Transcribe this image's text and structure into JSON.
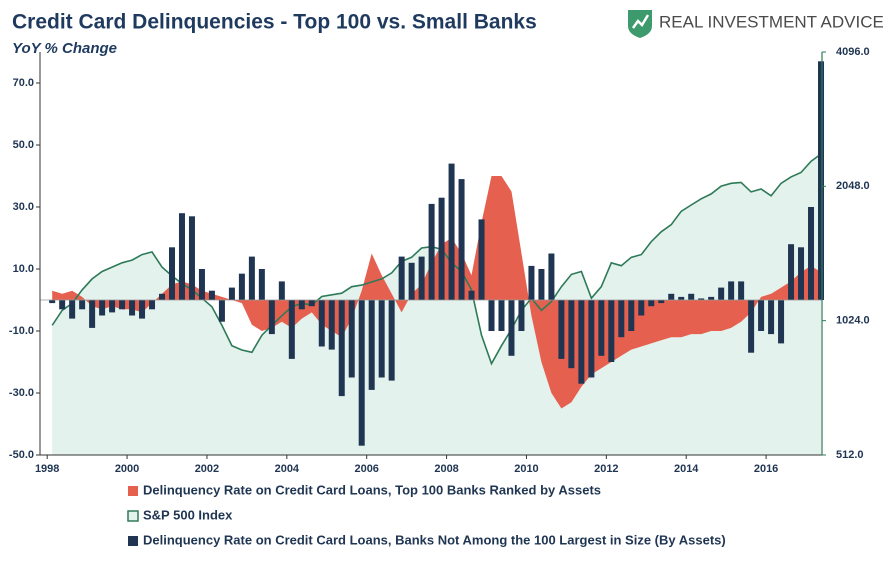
{
  "brand": "REAL INVESTMENT ADVICE",
  "chart_data": {
    "type": "combo",
    "title": "Credit Card Delinquencies - Top 100 vs. Small Banks",
    "subtitle": "YoY % Change",
    "x": [
      1998.125,
      1998.375,
      1998.625,
      1998.875,
      1999.125,
      1999.375,
      1999.625,
      1999.875,
      2000.125,
      2000.375,
      2000.625,
      2000.875,
      2001.125,
      2001.375,
      2001.625,
      2001.875,
      2002.125,
      2002.375,
      2002.625,
      2002.875,
      2003.125,
      2003.375,
      2003.625,
      2003.875,
      2004.125,
      2004.375,
      2004.625,
      2004.875,
      2005.125,
      2005.375,
      2005.625,
      2005.875,
      2006.125,
      2006.375,
      2006.625,
      2006.875,
      2007.125,
      2007.375,
      2007.625,
      2007.875,
      2008.125,
      2008.375,
      2008.625,
      2008.875,
      2009.125,
      2009.375,
      2009.625,
      2009.875,
      2010.125,
      2010.375,
      2010.625,
      2010.875,
      2011.125,
      2011.375,
      2011.625,
      2011.875,
      2012.125,
      2012.375,
      2012.625,
      2012.875,
      2013.125,
      2013.375,
      2013.625,
      2013.875,
      2014.125,
      2014.375,
      2014.625,
      2014.875,
      2015.125,
      2015.375,
      2015.625,
      2015.875,
      2016.125,
      2016.375,
      2016.625,
      2016.875,
      2017.125,
      2017.375
    ],
    "xlim": [
      1997.82,
      2017.4
    ],
    "xticks": [
      1998,
      2000,
      2002,
      2004,
      2006,
      2008,
      2010,
      2012,
      2014,
      2016
    ],
    "ylim": [
      -50,
      80
    ],
    "yticks": [
      {
        "value": -50,
        "label": "-50.0"
      },
      {
        "value": -30,
        "label": "-30.0"
      },
      {
        "value": -10,
        "label": "-10.0"
      },
      {
        "value": 10,
        "label": "10.0"
      },
      {
        "value": 30,
        "label": "30.0"
      },
      {
        "value": 50,
        "label": "50.0"
      },
      {
        "value": 70,
        "label": "70.0"
      }
    ],
    "y2lim": [
      512,
      4096
    ],
    "y2log": true,
    "y2ticks": [
      {
        "value": 512,
        "label": "512.0"
      },
      {
        "value": 1024,
        "label": "1024.0"
      },
      {
        "value": 2048,
        "label": "2048.0"
      },
      {
        "value": 4096,
        "label": "4096.0"
      }
    ],
    "grid": false,
    "series": [
      {
        "name": "Delinquency Rate on Credit Card Loans, Top 100 Banks Ranked by Assets",
        "type": "area",
        "color": "#e5604f",
        "values": [
          3,
          2,
          3,
          1,
          -2,
          -3,
          -2,
          -3,
          -3,
          -4,
          -1,
          2,
          5,
          6,
          5,
          3,
          2,
          1,
          0,
          -1,
          -8,
          -10,
          -9,
          -7,
          -9,
          -6,
          -4,
          -8,
          -10,
          -12,
          -6,
          3,
          15,
          8,
          2,
          -4,
          2,
          5,
          12,
          18,
          20,
          15,
          8,
          25,
          40,
          40,
          35,
          15,
          -5,
          -20,
          -30,
          -35,
          -33,
          -28,
          -24,
          -22,
          -20,
          -18,
          -16,
          -15,
          -14,
          -13,
          -12,
          -12,
          -11,
          -11,
          -10,
          -10,
          -9,
          -7,
          -4,
          1,
          2,
          4,
          6,
          9,
          11,
          9
        ]
      },
      {
        "name": "S&P 500 Index",
        "type": "line",
        "axis": "y2",
        "color": "#2e7a58",
        "fill": "#e3f2ec",
        "values": [
          1000,
          1080,
          1120,
          1200,
          1270,
          1320,
          1350,
          1380,
          1400,
          1440,
          1460,
          1350,
          1290,
          1240,
          1200,
          1150,
          1100,
          1000,
          900,
          880,
          870,
          950,
          1000,
          1050,
          1100,
          1120,
          1110,
          1160,
          1170,
          1180,
          1220,
          1230,
          1250,
          1270,
          1310,
          1390,
          1420,
          1490,
          1500,
          1480,
          1380,
          1320,
          1200,
          950,
          820,
          900,
          980,
          1080,
          1150,
          1080,
          1130,
          1220,
          1300,
          1320,
          1150,
          1220,
          1380,
          1360,
          1420,
          1440,
          1540,
          1620,
          1680,
          1800,
          1860,
          1920,
          1970,
          2050,
          2080,
          2090,
          1990,
          2020,
          1950,
          2080,
          2150,
          2200,
          2330,
          2420
        ]
      },
      {
        "name": "Delinquency Rate on Credit Card Loans, Banks Not Among the 100 Largest in Size (By Assets)",
        "type": "bar",
        "color": "#1f3552",
        "values": [
          -1,
          -3,
          -6,
          -3,
          -9,
          -5,
          -4,
          -3,
          -5,
          -6,
          -3,
          2,
          17,
          28,
          27,
          10,
          3,
          -7,
          4,
          8.5,
          14,
          10,
          -11,
          6,
          -19,
          -3,
          -2,
          -15,
          -16,
          -31,
          -25,
          -47,
          -29,
          -25,
          -26,
          14,
          12,
          14,
          31,
          33,
          44,
          39,
          3,
          26,
          -10,
          -10,
          -18,
          -10,
          11,
          10,
          15,
          -19,
          -22,
          -27,
          -25,
          -18,
          -20,
          -12,
          -10,
          -5,
          -2,
          -1,
          2,
          1,
          2,
          0.5,
          1,
          4,
          6,
          6,
          -17,
          -10,
          -11,
          -14,
          18,
          17,
          30,
          77
        ]
      }
    ]
  }
}
